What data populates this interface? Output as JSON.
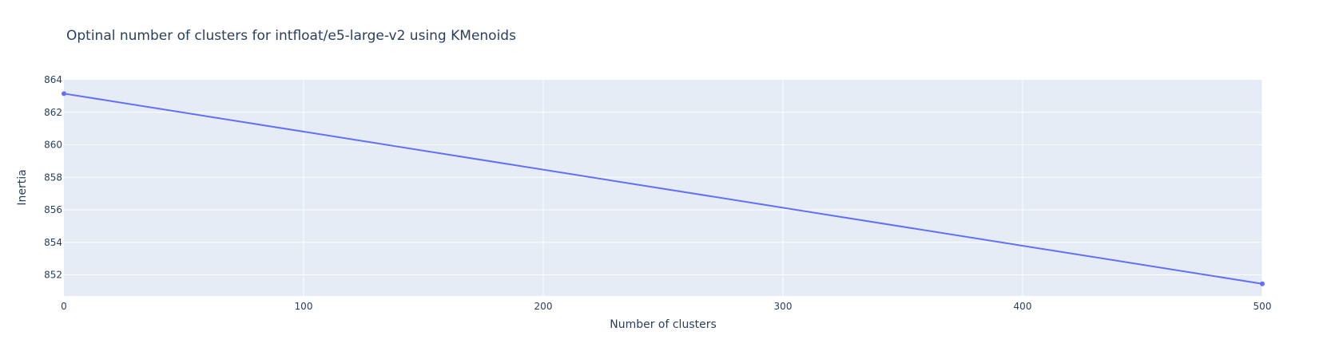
{
  "colors": {
    "background": "#ffffff",
    "plot_background": "#e5ecf6",
    "grid": "#ffffff",
    "text": "#2a3f5f",
    "series_line": "#636efa"
  },
  "chart_data": {
    "type": "line",
    "title": "Optinal number of clusters for intfloat/e5-large-v2 using KMenoids",
    "xlabel": "Number of clusters",
    "ylabel": "Inertia",
    "xlim": [
      0,
      500
    ],
    "ylim": [
      850.7,
      864
    ],
    "x_ticks": [
      0,
      100,
      200,
      300,
      400,
      500
    ],
    "y_ticks": [
      852,
      854,
      856,
      858,
      860,
      862,
      864
    ],
    "grid": true,
    "legend": "none",
    "series": [
      {
        "x": [
          0,
          500
        ],
        "y": [
          863.15,
          851.45
        ],
        "mode": "lines+markers"
      }
    ]
  }
}
